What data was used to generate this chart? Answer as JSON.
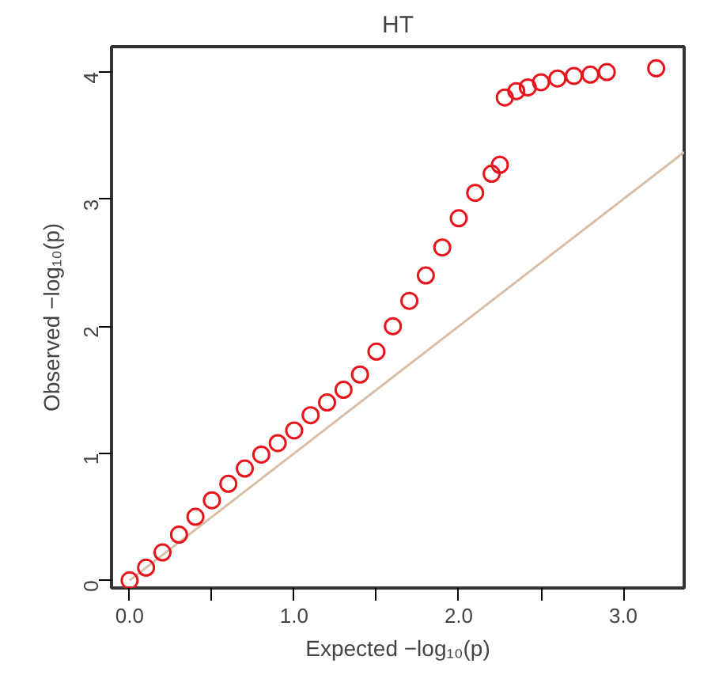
{
  "chart_data": {
    "type": "scatter",
    "title": "HT",
    "xlabel": "Expected −log₁₀(p)",
    "ylabel": "Observed −log₁₀(p)",
    "xlim": [
      -0.11,
      3.37
    ],
    "ylim": [
      -0.06,
      4.2
    ],
    "xticks": [
      {
        "value": 0,
        "label": "0.0"
      },
      {
        "value": 0.5,
        "label": null
      },
      {
        "value": 1,
        "label": "1.0"
      },
      {
        "value": 1.5,
        "label": null
      },
      {
        "value": 2,
        "label": "2.0"
      },
      {
        "value": 2.5,
        "label": null
      },
      {
        "value": 3,
        "label": "3.0"
      }
    ],
    "yticks": [
      0,
      1,
      2,
      3,
      4
    ],
    "grid": false,
    "marker": "circle",
    "series": [
      {
        "type": "line",
        "color": "#d9bfa8",
        "marker": "none",
        "x": [
          0,
          3.37
        ],
        "values": [
          0,
          3.37
        ]
      },
      {
        "color": "#e8141c",
        "x": [
          0,
          0.1,
          0.2,
          0.3,
          0.4,
          0.5,
          0.6,
          0.7,
          0.8,
          0.9,
          1.0,
          1.1,
          1.2,
          1.3,
          1.4,
          1.5,
          1.6,
          1.7,
          1.8,
          1.9,
          2.0,
          2.1,
          2.2,
          2.25,
          2.28,
          2.35,
          2.42,
          2.5,
          2.6,
          2.7,
          2.8,
          2.9,
          3.2
        ],
        "values": [
          0,
          0.1,
          0.22,
          0.36,
          0.5,
          0.63,
          0.76,
          0.88,
          0.99,
          1.08,
          1.18,
          1.3,
          1.4,
          1.5,
          1.62,
          1.8,
          2.0,
          2.2,
          2.4,
          2.62,
          2.85,
          3.05,
          3.2,
          3.27,
          3.8,
          3.85,
          3.88,
          3.92,
          3.95,
          3.97,
          3.98,
          4.0,
          4.03
        ]
      }
    ]
  }
}
